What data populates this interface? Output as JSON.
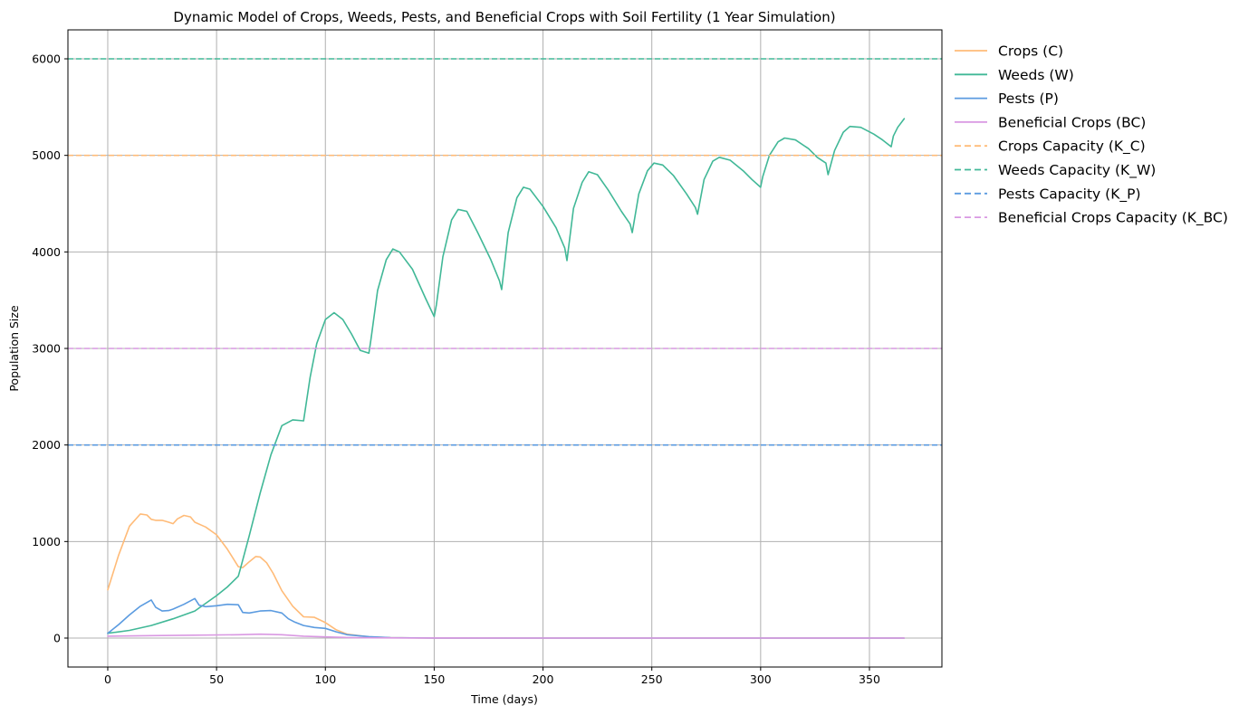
{
  "chart_data": {
    "type": "line",
    "title": "Dynamic Model of Crops, Weeds, Pests, and Beneficial Crops with Soil Fertility (1 Year Simulation)",
    "xlabel": "Time (days)",
    "ylabel": "Population Size",
    "xlim": [
      -18.3,
      383.3
    ],
    "ylim": [
      -300,
      6300
    ],
    "xticks": [
      0,
      50,
      100,
      150,
      200,
      250,
      300,
      350
    ],
    "yticks": [
      0,
      1000,
      2000,
      3000,
      4000,
      5000,
      6000
    ],
    "grid": true,
    "legend_position": "outside-right",
    "series": [
      {
        "name": "Crops (C)",
        "color": "#ffbb78",
        "style": "solid",
        "x": [
          0,
          5,
          10,
          15,
          18,
          20,
          22,
          25,
          28,
          30,
          32,
          35,
          38,
          40,
          45,
          50,
          55,
          60,
          62,
          65,
          68,
          70,
          73,
          76,
          80,
          85,
          90,
          95,
          100,
          105,
          110,
          120,
          130,
          150,
          200,
          250,
          300,
          366
        ],
        "y": [
          500,
          860,
          1160,
          1285,
          1275,
          1230,
          1220,
          1220,
          1200,
          1185,
          1235,
          1270,
          1255,
          1200,
          1150,
          1070,
          920,
          740,
          730,
          790,
          845,
          840,
          780,
          670,
          490,
          330,
          220,
          215,
          160,
          85,
          40,
          12,
          4,
          0,
          0,
          0,
          0,
          0
        ]
      },
      {
        "name": "Weeds (W)",
        "color": "#41b897",
        "style": "solid",
        "x": [
          0,
          10,
          20,
          30,
          40,
          50,
          55,
          60,
          61,
          65,
          70,
          75,
          80,
          85,
          90,
          91,
          93,
          96,
          100,
          104,
          108,
          112,
          116,
          120,
          121,
          124,
          128,
          131,
          134,
          140,
          146,
          150,
          151,
          154,
          158,
          161,
          165,
          170,
          176,
          180,
          181,
          184,
          188,
          191,
          194,
          200,
          206,
          210,
          211,
          214,
          218,
          221,
          225,
          230,
          236,
          240,
          241,
          244,
          248,
          251,
          255,
          260,
          266,
          270,
          271,
          274,
          278,
          281,
          286,
          292,
          296,
          300,
          301,
          304,
          308,
          311,
          316,
          322,
          326,
          330,
          331,
          334,
          338,
          341,
          346,
          352,
          356,
          360,
          361,
          363,
          366
        ],
        "y": [
          50,
          80,
          130,
          200,
          280,
          440,
          530,
          640,
          720,
          1060,
          1500,
          1900,
          2200,
          2260,
          2250,
          2400,
          2700,
          3050,
          3300,
          3370,
          3300,
          3150,
          2980,
          2950,
          3100,
          3600,
          3920,
          4030,
          4000,
          3820,
          3520,
          3330,
          3450,
          3950,
          4330,
          4440,
          4420,
          4200,
          3920,
          3700,
          3610,
          4200,
          4560,
          4670,
          4650,
          4470,
          4250,
          4040,
          3910,
          4450,
          4720,
          4830,
          4800,
          4640,
          4420,
          4290,
          4200,
          4600,
          4840,
          4920,
          4900,
          4790,
          4600,
          4460,
          4390,
          4750,
          4940,
          4980,
          4950,
          4840,
          4750,
          4670,
          4780,
          5000,
          5140,
          5180,
          5160,
          5070,
          4980,
          4920,
          4800,
          5050,
          5240,
          5300,
          5290,
          5220,
          5160,
          5090,
          5200,
          5290,
          5380
        ]
      },
      {
        "name": "Pests (P)",
        "color": "#5b9be0",
        "style": "solid",
        "x": [
          0,
          5,
          10,
          15,
          20,
          22,
          25,
          28,
          30,
          35,
          40,
          42,
          45,
          50,
          55,
          60,
          62,
          65,
          70,
          75,
          80,
          83,
          86,
          90,
          95,
          100,
          105,
          110,
          120,
          130,
          150,
          200,
          250,
          300,
          366
        ],
        "y": [
          50,
          140,
          240,
          330,
          395,
          320,
          280,
          285,
          300,
          350,
          410,
          340,
          325,
          335,
          350,
          345,
          265,
          260,
          280,
          285,
          260,
          200,
          165,
          130,
          110,
          100,
          65,
          35,
          15,
          5,
          0,
          0,
          0,
          0,
          0
        ]
      },
      {
        "name": "Beneficial Crops (BC)",
        "color": "#d998e2",
        "style": "solid",
        "x": [
          0,
          20,
          40,
          60,
          70,
          80,
          90,
          100,
          110,
          120,
          140,
          200,
          250,
          300,
          366
        ],
        "y": [
          20,
          25,
          30,
          35,
          40,
          35,
          20,
          12,
          6,
          3,
          1,
          0,
          0,
          0,
          0
        ]
      },
      {
        "name": "Crops Capacity (K_C)",
        "color": "#ffbb78",
        "style": "dashed",
        "x": [
          -18.3,
          383.3
        ],
        "y": [
          5000,
          5000
        ]
      },
      {
        "name": "Weeds Capacity (K_W)",
        "color": "#41b897",
        "style": "dashed",
        "x": [
          -18.3,
          383.3
        ],
        "y": [
          6000,
          6000
        ]
      },
      {
        "name": "Pests Capacity (K_P)",
        "color": "#5b9be0",
        "style": "dashed",
        "x": [
          -18.3,
          383.3
        ],
        "y": [
          2000,
          2000
        ]
      },
      {
        "name": "Beneficial Crops Capacity (K_BC)",
        "color": "#d998e2",
        "style": "dashed",
        "x": [
          -18.3,
          383.3
        ],
        "y": [
          3000,
          3000
        ]
      }
    ]
  }
}
